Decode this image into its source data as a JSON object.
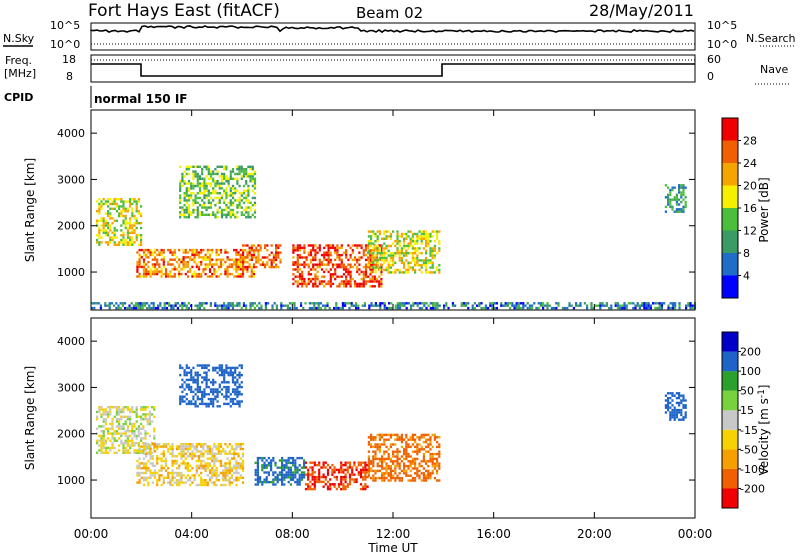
{
  "header": {
    "title": "Fort Hays East (fitACF)",
    "beam": "Beam 02",
    "date": "28/May/2011"
  },
  "top_panels": {
    "nsky_label": "N.Sky",
    "nsearch_label": "N.Search",
    "noise_ticks": [
      "10^5",
      "10^0"
    ],
    "freq_label": "Freq.",
    "freq_unit": "[MHz]",
    "freq_ticks": [
      "18",
      "8"
    ],
    "nave_label": "Nave",
    "nave_ticks": [
      "60",
      "0"
    ],
    "cpid_label": "CPID",
    "cpid_value": "normal 150 IF"
  },
  "chart_data": [
    {
      "type": "heatmap",
      "title": "",
      "ylabel": "Slant Range [km]",
      "xlabel": "",
      "x_ticks": [
        "00:00",
        "04:00",
        "08:00",
        "12:00",
        "16:00",
        "20:00",
        "00:00"
      ],
      "y_ticks": [
        "1000",
        "2000",
        "3000",
        "4000"
      ],
      "ylim": [
        180,
        4500
      ],
      "colorbar": {
        "label": "Power [dB]",
        "ticks": [
          "4",
          "8",
          "12",
          "16",
          "20",
          "24",
          "28"
        ],
        "colors": [
          "#0000ff",
          "#1e6ec8",
          "#3c9a64",
          "#4bbe3c",
          "#f5f000",
          "#f5a500",
          "#f06000",
          "#f00000"
        ]
      },
      "regions": [
        {
          "t_start": 0.2,
          "t_end": 2.0,
          "r_start": 1600,
          "r_end": 2600,
          "level": 18
        },
        {
          "t_start": 1.8,
          "t_end": 6.5,
          "r_start": 900,
          "r_end": 1500,
          "level": 24
        },
        {
          "t_start": 6.0,
          "t_end": 7.5,
          "r_start": 1100,
          "r_end": 1600,
          "level": 26
        },
        {
          "t_start": 8.0,
          "t_end": 11.5,
          "r_start": 700,
          "r_end": 1600,
          "level": 27
        },
        {
          "t_start": 11.0,
          "t_end": 13.8,
          "r_start": 1000,
          "r_end": 1900,
          "level": 18
        },
        {
          "t_start": 3.5,
          "t_end": 6.5,
          "r_start": 2200,
          "r_end": 3300,
          "level": 14
        },
        {
          "t_start": 22.8,
          "t_end": 23.6,
          "r_start": 2300,
          "r_end": 2900,
          "level": 10
        },
        {
          "t_start": 0.0,
          "t_end": 24.0,
          "r_start": 200,
          "r_end": 350,
          "level": 8
        }
      ]
    },
    {
      "type": "heatmap",
      "title": "",
      "ylabel": "Slant Range [km]",
      "xlabel": "Time UT",
      "x_ticks": [
        "00:00",
        "04:00",
        "08:00",
        "12:00",
        "16:00",
        "20:00",
        "00:00"
      ],
      "y_ticks": [
        "1000",
        "2000",
        "3000",
        "4000"
      ],
      "ylim": [
        180,
        4500
      ],
      "colorbar": {
        "label": "Velocity [m s^-1]",
        "ticks": [
          "200",
          "100",
          "50",
          "15",
          "-15",
          "-50",
          "-100",
          "-200"
        ],
        "colors": [
          "#0000c8",
          "#1e64c8",
          "#2ca02c",
          "#78d23c",
          "#c8c8c8",
          "#f5d200",
          "#f5a000",
          "#f06000",
          "#f00000"
        ]
      },
      "regions": [
        {
          "t_start": 0.2,
          "t_end": 2.5,
          "r_start": 1600,
          "r_end": 2600,
          "level": 0
        },
        {
          "t_start": 1.8,
          "t_end": 6.0,
          "r_start": 900,
          "r_end": 1800,
          "level": -30
        },
        {
          "t_start": 3.5,
          "t_end": 6.0,
          "r_start": 2600,
          "r_end": 3500,
          "level": 150
        },
        {
          "t_start": 6.5,
          "t_end": 8.5,
          "r_start": 900,
          "r_end": 1500,
          "level": 120
        },
        {
          "t_start": 8.5,
          "t_end": 11.0,
          "r_start": 800,
          "r_end": 1400,
          "level": -200
        },
        {
          "t_start": 11.0,
          "t_end": 13.8,
          "r_start": 1000,
          "r_end": 2000,
          "level": -120
        },
        {
          "t_start": 22.8,
          "t_end": 23.6,
          "r_start": 2300,
          "r_end": 2900,
          "level": 150
        }
      ]
    }
  ]
}
